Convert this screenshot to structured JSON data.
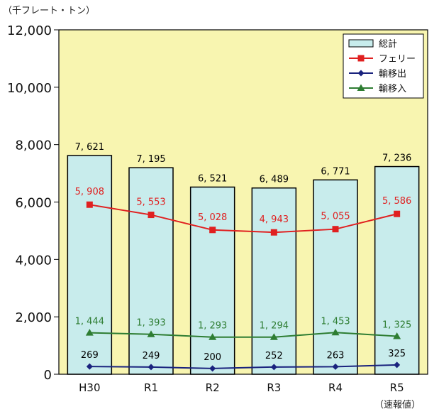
{
  "chart_data": {
    "type": "bar",
    "unit_label": "（千フレート・トン）",
    "categories": [
      "H30",
      "R1",
      "R2",
      "R3",
      "R4",
      "R5"
    ],
    "category_note": "（速報値）",
    "ylim": [
      0,
      12000
    ],
    "yticks": [
      "0",
      "2,000",
      "4,000",
      "6,000",
      "8,000",
      "10,000",
      "12,000"
    ],
    "ytick_values": [
      0,
      2000,
      4000,
      6000,
      8000,
      10000,
      12000
    ],
    "grid": false,
    "legend_position": "top-right",
    "plot_background": "#f8f5b0",
    "series": [
      {
        "name": "総計",
        "kind": "bar",
        "color": "#c8ecec",
        "stroke": "#000000",
        "values": [
          7621,
          7195,
          6521,
          6489,
          6771,
          7236
        ],
        "labels": [
          "7, 621",
          "7, 195",
          "6, 521",
          "6, 489",
          "6, 771",
          "7, 236"
        ],
        "label_color": "#000000"
      },
      {
        "name": "フェリー",
        "kind": "line",
        "marker": "square",
        "color": "#e02020",
        "values": [
          5908,
          5553,
          5028,
          4943,
          5055,
          5586
        ],
        "labels": [
          "5, 908",
          "5, 553",
          "5, 028",
          "4, 943",
          "5, 055",
          "5, 586"
        ],
        "label_color": "#e02020"
      },
      {
        "name": "輸移出",
        "kind": "line",
        "marker": "diamond",
        "color": "#1a237e",
        "values": [
          269,
          249,
          200,
          252,
          263,
          325
        ],
        "labels": [
          "269",
          "249",
          "200",
          "252",
          "263",
          "325"
        ],
        "label_color": "#000000"
      },
      {
        "name": "輸移入",
        "kind": "line",
        "marker": "triangle",
        "color": "#2e7d32",
        "values": [
          1444,
          1393,
          1293,
          1294,
          1453,
          1325
        ],
        "labels": [
          "1, 444",
          "1, 393",
          "1, 293",
          "1, 294",
          "1, 453",
          "1, 325"
        ],
        "label_color": "#2e7d32"
      }
    ]
  }
}
